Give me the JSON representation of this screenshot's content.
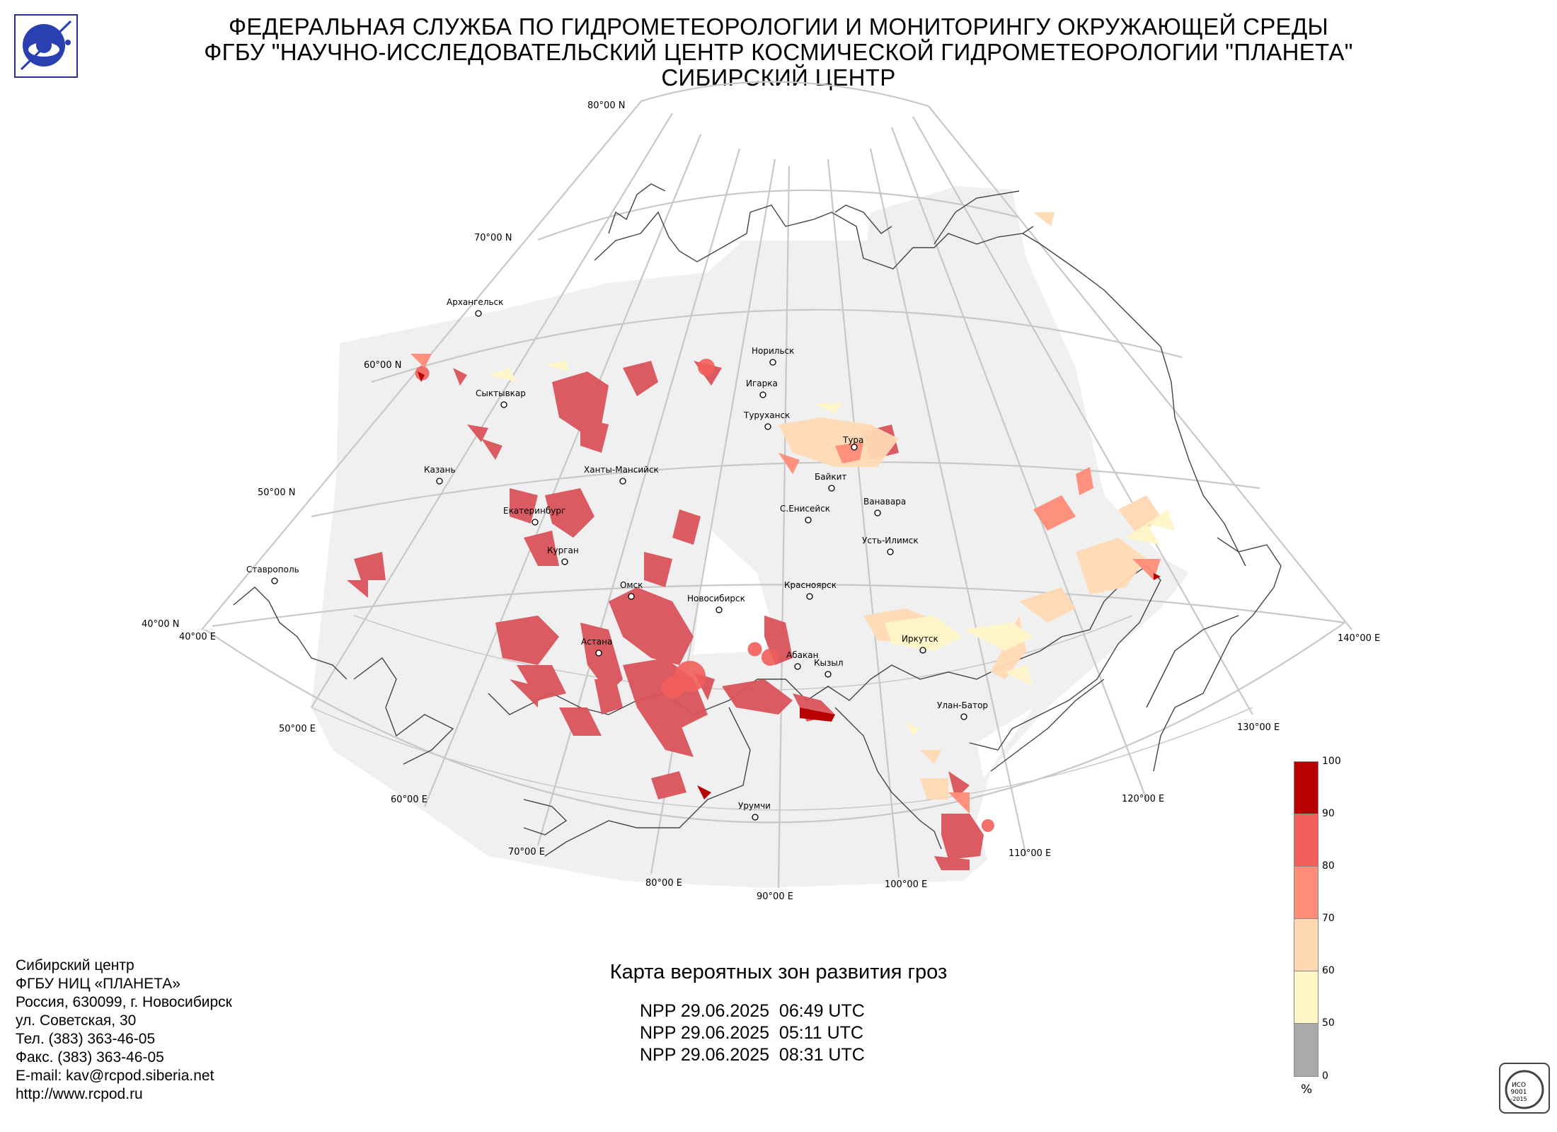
{
  "header": {
    "line1": "ФЕДЕРАЛЬНАЯ СЛУЖБА ПО ГИДРОМЕТЕОРОЛОГИИ И МОНИТОРИНГУ ОКРУЖАЮЩЕЙ СРЕДЫ",
    "line2": "ФГБУ \"НАУЧНО-ИССЛЕДОВАТЕЛЬСКИЙ ЦЕНТР КОСМИЧЕСКОЙ ГИДРОМЕТЕОРОЛОГИИ \"ПЛАНЕТА\"",
    "line3": "СИБИРСКИЙ ЦЕНТР"
  },
  "map": {
    "lat_labels": [
      "80°00 N",
      "70°00 N",
      "60°00 N",
      "50°00 N",
      "40°00 N"
    ],
    "lon_labels": [
      "40°00 E",
      "50°00 E",
      "60°00 E",
      "70°00 E",
      "80°00 E",
      "90°00 E",
      "100°00 E",
      "110°00 E",
      "120°00 E",
      "130°00 E",
      "140°00 E"
    ],
    "cities": [
      "Архангельск",
      "Сыктывкар",
      "Казань",
      "Ставрополь",
      "Екатеринбург",
      "Курган",
      "Ханты-Мансийск",
      "Омск",
      "Астана",
      "Новосибирск",
      "Норильск",
      "Игарка",
      "Туруханск",
      "Тура",
      "Байкит",
      "Ванавара",
      "С.Енисейск",
      "Усть-Илимск",
      "Красноярск",
      "Абакан",
      "Кызыл",
      "Иркутск",
      "Улан-Батор",
      "Урумчи"
    ]
  },
  "colors": {
    "land_bg": "#f0f0f0",
    "grid": "#c8c8c8",
    "border": "#444444",
    "p50_60": "#fff6c8",
    "p60_70": "#ffd9b4",
    "p70_80": "#ff8c78",
    "p80_90": "#f25f5c",
    "p90_100": "#b70000",
    "below_50": "#aaaaaa",
    "dominant": "#d9545a"
  },
  "legend": {
    "ticks": [
      "100",
      "90",
      "80",
      "70",
      "60",
      "50",
      "0"
    ],
    "unit": "%"
  },
  "footer": {
    "address": [
      "Сибирский центр",
      "ФГБУ НИЦ «ПЛАНЕТА»",
      "Россия, 630099, г. Новосибирск",
      "ул. Советская, 30",
      "Тел. (383) 363-46-05",
      "Факс. (383) 363-46-05",
      "E-mail: kav@rcpod.siberia.net",
      "http://www.rcpod.ru"
    ],
    "title": "Карта вероятных зон развития гроз",
    "passes": [
      "NPP 29.06.2025  06:49 UTC",
      "NPP 29.06.2025  05:11 UTC",
      "NPP 29.06.2025  08:31 UTC"
    ]
  },
  "iso_text": [
    "ИСО",
    "9001",
    "-2015"
  ],
  "icons": [
    "planeta-logo-icon",
    "iso-certification-icon"
  ]
}
